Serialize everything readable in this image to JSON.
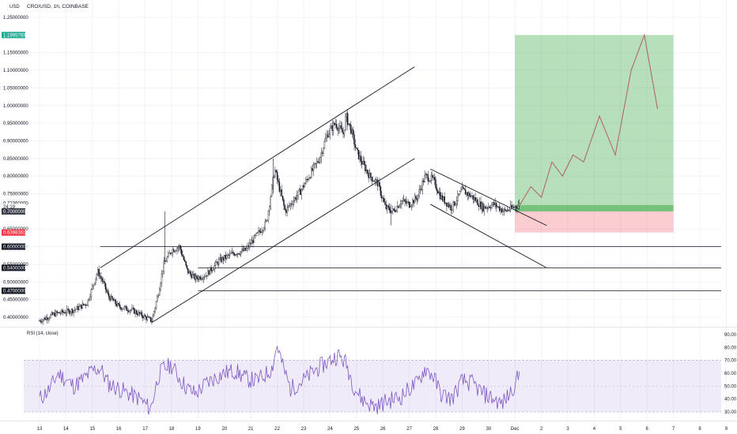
{
  "header": {
    "symbol_line": "CRO/USD, 1h, COINBASE",
    "currency": "USD"
  },
  "rsi": {
    "label": "RSI (14, close)",
    "ticks": [
      "90.00",
      "80.00",
      "70.00",
      "60.00",
      "50.00",
      "40.00",
      "30.00"
    ]
  },
  "price_axis_ticks": [
    "1.25000000",
    "1.15000000",
    "1.10000000",
    "1.05000000",
    "1.00000000",
    "0.95000000",
    "0.90000000",
    "0.85000000",
    "0.80000000",
    "0.75000000",
    "0.65000000",
    "0.60000000",
    "0.55000000",
    "0.50000000",
    "0.45000000",
    "0.40000000"
  ],
  "price_tags": [
    {
      "text": "1.19957834",
      "bg": "#22ab94",
      "fg": "#ffffff",
      "price": 1.2
    },
    {
      "text": "0.72360000",
      "bg": "#ffffff",
      "fg": "#131722",
      "price": 0.7236
    },
    {
      "text": "24:19",
      "bg": "#ffffff",
      "fg": "#131722",
      "price": 0.713
    },
    {
      "text": "0.70000000",
      "bg": "#363a45",
      "fg": "#ffffff",
      "price": 0.7
    },
    {
      "text": "0.63983617",
      "bg": "#f23645",
      "fg": "#ffffff",
      "price": 0.64
    },
    {
      "text": "0.60000000",
      "bg": "#131722",
      "fg": "#ffffff",
      "price": 0.6
    },
    {
      "text": "0.54000000",
      "bg": "#131722",
      "fg": "#ffffff",
      "price": 0.54
    },
    {
      "text": "0.47000000",
      "bg": "#131722",
      "fg": "#ffffff",
      "price": 0.475
    }
  ],
  "x_ticks": [
    "13",
    "14",
    "15",
    "16",
    "17",
    "18",
    "19",
    "20",
    "21",
    "22",
    "23",
    "24",
    "25",
    "26",
    "27",
    "28",
    "29",
    "30",
    "Dec",
    "2",
    "3",
    "4",
    "5",
    "6",
    "7",
    "8",
    "9"
  ],
  "colors": {
    "grid": "#f0f3fa",
    "candle": "#131722",
    "rsi_line": "#7e57c2",
    "rsi_band": "rgba(126,87,194,0.12)",
    "profit": "rgba(76,175,80,0.40)",
    "stop": "rgba(242,54,69,0.25)",
    "forecast": "#b06a6a"
  },
  "chart_data": {
    "type": "candlestick",
    "symbol": "CRO/USD",
    "interval": "1h",
    "exchange": "COINBASE",
    "ylim": [
      0.38,
      1.27
    ],
    "x_range_days": [
      "13",
      "9"
    ],
    "price_path": [
      [
        13.0,
        0.39
      ],
      [
        13.6,
        0.41
      ],
      [
        14.3,
        0.42
      ],
      [
        14.8,
        0.44
      ],
      [
        15.2,
        0.53
      ],
      [
        15.4,
        0.5
      ],
      [
        15.6,
        0.46
      ],
      [
        16.0,
        0.43
      ],
      [
        16.5,
        0.42
      ],
      [
        17.0,
        0.4
      ],
      [
        17.25,
        0.39
      ],
      [
        17.5,
        0.47
      ],
      [
        17.7,
        0.55
      ],
      [
        18.0,
        0.59
      ],
      [
        18.3,
        0.6
      ],
      [
        18.6,
        0.53
      ],
      [
        18.9,
        0.51
      ],
      [
        19.3,
        0.52
      ],
      [
        19.8,
        0.56
      ],
      [
        20.3,
        0.58
      ],
      [
        20.8,
        0.59
      ],
      [
        21.2,
        0.63
      ],
      [
        21.6,
        0.67
      ],
      [
        21.9,
        0.82
      ],
      [
        22.1,
        0.76
      ],
      [
        22.3,
        0.7
      ],
      [
        22.6,
        0.73
      ],
      [
        22.9,
        0.76
      ],
      [
        23.2,
        0.8
      ],
      [
        23.6,
        0.85
      ],
      [
        23.9,
        0.92
      ],
      [
        24.2,
        0.95
      ],
      [
        24.5,
        0.92
      ],
      [
        24.6,
        0.97
      ],
      [
        24.8,
        0.93
      ],
      [
        25.0,
        0.87
      ],
      [
        25.2,
        0.84
      ],
      [
        25.5,
        0.8
      ],
      [
        25.8,
        0.78
      ],
      [
        26.1,
        0.71
      ],
      [
        26.4,
        0.7
      ],
      [
        26.7,
        0.73
      ],
      [
        27.0,
        0.72
      ],
      [
        27.3,
        0.74
      ],
      [
        27.6,
        0.8
      ],
      [
        27.9,
        0.79
      ],
      [
        28.2,
        0.74
      ],
      [
        28.6,
        0.71
      ],
      [
        29.0,
        0.76
      ],
      [
        29.4,
        0.74
      ],
      [
        29.8,
        0.71
      ],
      [
        30.2,
        0.72
      ],
      [
        30.6,
        0.7
      ],
      [
        30.9,
        0.71
      ],
      [
        31.2,
        0.72
      ]
    ],
    "rsi": {
      "ylim": [
        25,
        92
      ],
      "levels": [
        70,
        30
      ],
      "values": [
        [
          13.0,
          40
        ],
        [
          13.4,
          48
        ],
        [
          13.7,
          60
        ],
        [
          14.0,
          55
        ],
        [
          14.3,
          50
        ],
        [
          14.7,
          56
        ],
        [
          15.0,
          62
        ],
        [
          15.3,
          64
        ],
        [
          15.6,
          52
        ],
        [
          16.0,
          48
        ],
        [
          16.4,
          44
        ],
        [
          16.8,
          40
        ],
        [
          17.0,
          36
        ],
        [
          17.2,
          32
        ],
        [
          17.5,
          58
        ],
        [
          17.7,
          64
        ],
        [
          18.0,
          66
        ],
        [
          18.3,
          56
        ],
        [
          18.6,
          48
        ],
        [
          18.9,
          44
        ],
        [
          19.3,
          52
        ],
        [
          19.6,
          56
        ],
        [
          20.0,
          60
        ],
        [
          20.4,
          62
        ],
        [
          20.8,
          56
        ],
        [
          21.2,
          54
        ],
        [
          21.5,
          58
        ],
        [
          21.8,
          64
        ],
        [
          22.0,
          82
        ],
        [
          22.2,
          66
        ],
        [
          22.5,
          48
        ],
        [
          22.8,
          52
        ],
        [
          23.1,
          56
        ],
        [
          23.4,
          62
        ],
        [
          23.7,
          66
        ],
        [
          24.0,
          70
        ],
        [
          24.3,
          74
        ],
        [
          24.6,
          68
        ],
        [
          24.9,
          50
        ],
        [
          25.2,
          40
        ],
        [
          25.5,
          36
        ],
        [
          25.8,
          34
        ],
        [
          26.1,
          38
        ],
        [
          26.4,
          40
        ],
        [
          26.7,
          42
        ],
        [
          27.0,
          48
        ],
        [
          27.3,
          52
        ],
        [
          27.6,
          64
        ],
        [
          27.9,
          58
        ],
        [
          28.2,
          44
        ],
        [
          28.6,
          40
        ],
        [
          29.0,
          54
        ],
        [
          29.4,
          52
        ],
        [
          29.8,
          44
        ],
        [
          30.2,
          40
        ],
        [
          30.5,
          36
        ],
        [
          30.8,
          44
        ],
        [
          31.2,
          60
        ]
      ]
    },
    "trendlines": [
      {
        "name": "channel-upper",
        "p1": [
          15.3,
          0.54
        ],
        "p2": [
          27.2,
          1.11
        ]
      },
      {
        "name": "channel-lower",
        "p1": [
          17.25,
          0.385
        ],
        "p2": [
          27.2,
          0.85
        ]
      },
      {
        "name": "wedge-upper",
        "p1": [
          27.8,
          0.82
        ],
        "p2": [
          32.2,
          0.66
        ]
      },
      {
        "name": "wedge-lower",
        "p1": [
          27.8,
          0.72
        ],
        "p2": [
          32.2,
          0.54
        ]
      }
    ],
    "horizontal_levels": [
      {
        "price": 0.6,
        "from": 15.3
      },
      {
        "price": 0.54,
        "from": 19.0
      },
      {
        "price": 0.475,
        "from": 19.0
      }
    ],
    "long_position": {
      "start": 31.0,
      "end": 37.0,
      "entry": 0.7,
      "target": 1.2,
      "stop": 0.64
    },
    "forecast_path": [
      [
        31.2,
        0.72
      ],
      [
        31.6,
        0.77
      ],
      [
        32.0,
        0.74
      ],
      [
        32.4,
        0.84
      ],
      [
        32.8,
        0.8
      ],
      [
        33.2,
        0.86
      ],
      [
        33.6,
        0.84
      ],
      [
        34.2,
        0.97
      ],
      [
        34.8,
        0.86
      ],
      [
        35.4,
        1.1
      ],
      [
        35.9,
        1.2
      ],
      [
        36.4,
        0.99
      ]
    ]
  }
}
